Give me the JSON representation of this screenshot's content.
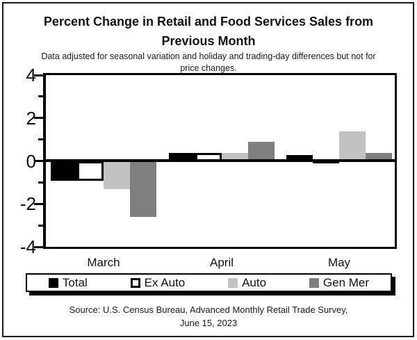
{
  "chart_data": {
    "type": "bar",
    "title": "Percent Change in Retail and Food Services Sales from Previous Month",
    "title_lines": [
      "Percent Change in Retail and Food Services Sales from",
      "Previous Month"
    ],
    "subtitle": "Data adjusted for seasonal variation and holiday and trading-day differences but not for price changes.",
    "subtitle_lines": [
      "Data adjusted for seasonal variation and holiday and trading-day differences but not for",
      "price changes."
    ],
    "categories": [
      "March",
      "April",
      "May"
    ],
    "series": [
      {
        "name": "Total",
        "color": "#000000",
        "values": [
          -0.9,
          0.4,
          0.3
        ]
      },
      {
        "name": "Ex Auto",
        "color": "#ffffff",
        "border_color": "#000000",
        "values": [
          -0.9,
          0.4,
          0.1
        ]
      },
      {
        "name": "Auto",
        "color": "#c2c2c2",
        "values": [
          -1.3,
          0.4,
          1.4
        ]
      },
      {
        "name": "Gen Mer",
        "color": "#7f7f7f",
        "values": [
          -2.6,
          0.9,
          0.4
        ]
      }
    ],
    "ylabel": "",
    "xlabel": "",
    "ylim": [
      -4,
      4
    ],
    "yticks_major": [
      4,
      2,
      0,
      -2,
      -4
    ],
    "yticks_minor": [
      3,
      1,
      -1,
      -3
    ],
    "grid": false,
    "legend_position": "bottom",
    "axis_color": "#000000",
    "source_lines": [
      "Source: U.S. Census Bureau, Advanced Monthly Retail Trade Survey,",
      "June 15, 2023"
    ]
  }
}
